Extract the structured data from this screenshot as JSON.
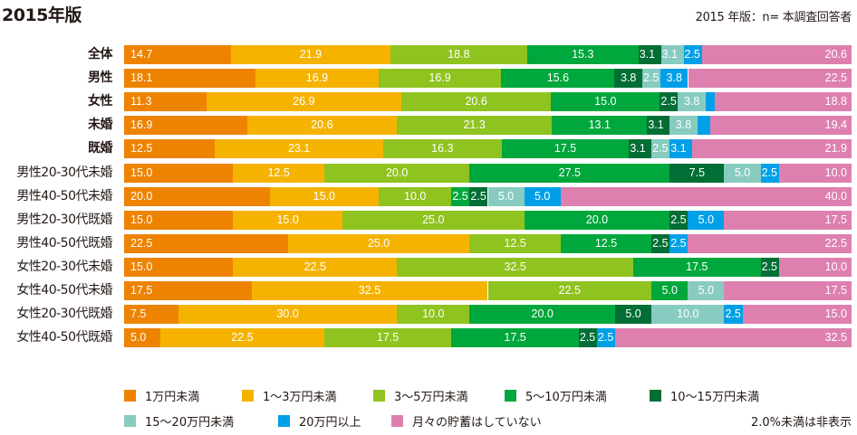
{
  "header": {
    "title": "2015年版",
    "note": "2015 年版：n= 本調査回答者"
  },
  "footnote": "2.0%未満は非表示",
  "chart_data": {
    "type": "bar",
    "orientation": "horizontal",
    "stacked": true,
    "normalized_percent": true,
    "title": "2015年版",
    "xlabel": "",
    "ylabel": "",
    "xlim": [
      0,
      100
    ],
    "legend_position": "bottom",
    "label_threshold": 2.0,
    "categories": [
      "全体",
      "男性",
      "女性",
      "未婚",
      "既婚",
      "男性20-30代未婚",
      "男性40-50代未婚",
      "男性20-30代既婚",
      "男性40-50代既婚",
      "女性20-30代未婚",
      "女性40-50代未婚",
      "女性20-30代既婚",
      "女性40-50代既婚"
    ],
    "bold_categories": [
      "全体",
      "男性",
      "女性",
      "未婚",
      "既婚"
    ],
    "series": [
      {
        "name": "1万円未満",
        "color": "#ee8300",
        "values": [
          14.7,
          18.1,
          11.3,
          16.9,
          12.5,
          15.0,
          20.0,
          15.0,
          22.5,
          15.0,
          17.5,
          7.5,
          5.0
        ]
      },
      {
        "name": "1～3万円未満",
        "color": "#f5b300",
        "values": [
          21.9,
          16.9,
          26.9,
          20.6,
          23.1,
          12.5,
          15.0,
          15.0,
          25.0,
          22.5,
          32.5,
          30.0,
          22.5
        ]
      },
      {
        "name": "3～5万円未満",
        "color": "#8fc31f",
        "values": [
          18.8,
          16.9,
          20.6,
          21.3,
          16.3,
          20.0,
          10.0,
          25.0,
          12.5,
          32.5,
          22.5,
          10.0,
          17.5
        ]
      },
      {
        "name": "5～10万円未満",
        "color": "#00a73c",
        "values": [
          15.3,
          15.6,
          15.0,
          13.1,
          17.5,
          27.5,
          2.5,
          20.0,
          12.5,
          17.5,
          5.0,
          20.0,
          17.5
        ]
      },
      {
        "name": "10～15万円未満",
        "color": "#006e35",
        "values": [
          3.1,
          3.8,
          2.5,
          3.1,
          3.1,
          7.5,
          2.5,
          2.5,
          2.5,
          2.5,
          0,
          5.0,
          2.5
        ]
      },
      {
        "name": "15～20万円未満",
        "color": "#88cbc0",
        "values": [
          3.1,
          2.5,
          3.8,
          3.8,
          2.5,
          5.0,
          5.0,
          0,
          0,
          0,
          5.0,
          10.0,
          0
        ]
      },
      {
        "name": "20万円以上",
        "color": "#00a0e9",
        "values": [
          2.5,
          3.8,
          1.3,
          1.8,
          3.1,
          2.5,
          5.0,
          5.0,
          2.5,
          0,
          0,
          2.5,
          2.5
        ]
      },
      {
        "name": "月々の貯蓄はしていない",
        "color": "#dd80b0",
        "values": [
          20.6,
          22.5,
          18.8,
          19.4,
          21.9,
          10.0,
          40.0,
          17.5,
          22.5,
          10.0,
          17.5,
          15.0,
          32.5
        ]
      }
    ]
  }
}
